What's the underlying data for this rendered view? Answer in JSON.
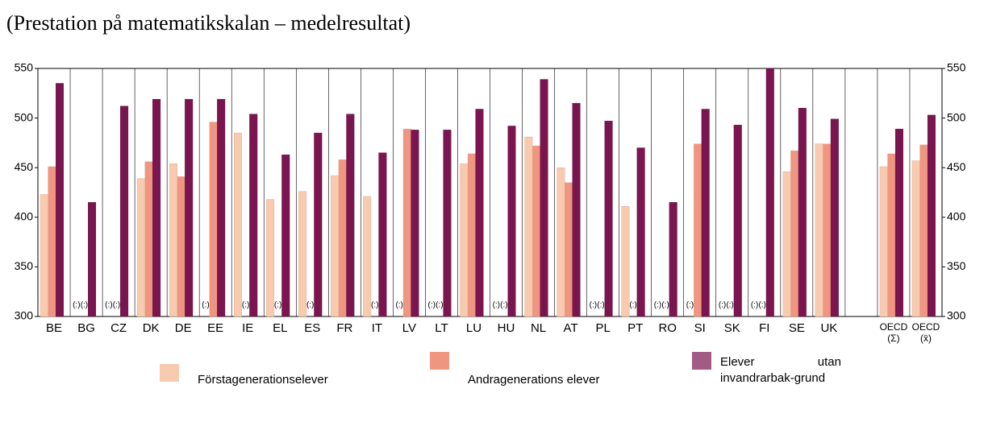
{
  "chart_data": {
    "type": "bar",
    "title": "(Prestation på matematikskalan – medelresultat)",
    "categories": [
      "BE",
      "BG",
      "CZ",
      "DK",
      "DE",
      "EE",
      "IE",
      "EL",
      "ES",
      "FR",
      "IT",
      "LV",
      "LT",
      "LU",
      "HU",
      "NL",
      "AT",
      "PL",
      "PT",
      "RO",
      "SI",
      "SK",
      "FI",
      "SE",
      "UK",
      null,
      "OECD (Σ)",
      "OECD (x̄)"
    ],
    "series": [
      {
        "name": "Förstagenerationselever",
        "color": "#f8cbb0",
        "values": [
          423,
          null,
          null,
          439,
          454,
          null,
          485,
          418,
          426,
          442,
          421,
          null,
          null,
          454,
          null,
          481,
          450,
          null,
          411,
          null,
          null,
          null,
          null,
          446,
          474,
          null,
          451,
          457
        ],
        "value_labels": [
          null,
          "(:)",
          "(:)",
          null,
          null,
          "(:)",
          null,
          null,
          null,
          null,
          null,
          "(:)",
          "(:)",
          null,
          "(:)",
          null,
          null,
          "(:)",
          null,
          "(:)",
          "(:)",
          "(:)",
          "(:)",
          null,
          null,
          null,
          null,
          null
        ]
      },
      {
        "name": "Andragenerations elever",
        "color": "#ef9580",
        "values": [
          451,
          null,
          null,
          456,
          441,
          496,
          null,
          null,
          null,
          458,
          null,
          489,
          null,
          464,
          null,
          472,
          435,
          null,
          null,
          null,
          474,
          null,
          null,
          467,
          474,
          null,
          464,
          473
        ],
        "value_labels": [
          null,
          "(:)",
          "(:)",
          null,
          null,
          null,
          "(:)",
          "(:)",
          "(:)",
          null,
          "(:)",
          null,
          "(:)",
          null,
          "(:)",
          null,
          null,
          "(:)",
          "(:)",
          "(:)",
          null,
          "(:)",
          "(:)",
          null,
          null,
          null,
          null,
          null
        ]
      },
      {
        "name": "Elever utan invandrarbak-grund",
        "color": "#7a1550",
        "values": [
          535,
          415,
          512,
          519,
          519,
          519,
          504,
          463,
          485,
          504,
          465,
          488,
          488,
          509,
          492,
          539,
          515,
          497,
          470,
          415,
          509,
          493,
          550,
          510,
          499,
          null,
          489,
          503
        ]
      }
    ],
    "ylim": [
      300,
      550
    ],
    "yticks": [
      300,
      350,
      400,
      450,
      500,
      550
    ],
    "y2lim": [
      300,
      550
    ],
    "y2ticks": [
      300,
      350,
      400,
      450,
      500,
      550
    ],
    "grid": false
  }
}
